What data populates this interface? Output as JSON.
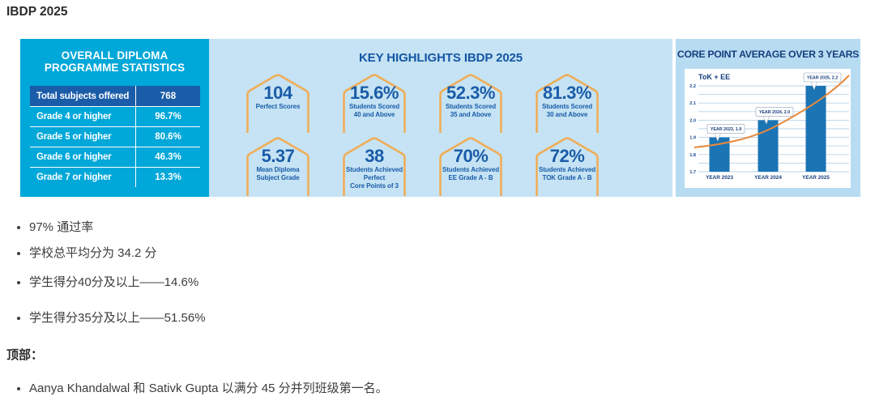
{
  "page": {
    "title": "IBDP 2025"
  },
  "stats_panel": {
    "title": "OVERALL DIPLOMA PROGRAMME STATISTICS",
    "rows": [
      {
        "label": "Total subjects offered",
        "value": "768"
      },
      {
        "label": "Grade 4 or higher",
        "value": "96.7%"
      },
      {
        "label": "Grade 5 or higher",
        "value": "80.6%"
      },
      {
        "label": "Grade 6 or higher",
        "value": "46.3%"
      },
      {
        "label": "Grade 7 or higher",
        "value": "13.3%"
      }
    ]
  },
  "highlights": {
    "title": "KEY HIGHLIGHTS IBDP 2025",
    "badges": [
      {
        "value": "104",
        "label": "Perfect Scores"
      },
      {
        "value": "15.6%",
        "label": "Students Scored\n40 and Above"
      },
      {
        "value": "52.3%",
        "label": "Students Scored\n35 and Above"
      },
      {
        "value": "81.3%",
        "label": "Students Scored\n30 and Above"
      },
      {
        "value": "5.37",
        "label": "Mean Diploma\nSubject Grade"
      },
      {
        "value": "38",
        "label": "Students Achieved Perfect\nCore Points of 3"
      },
      {
        "value": "70%",
        "label": "Students Achieved\nEE Grade A - B"
      },
      {
        "value": "72%",
        "label": "Students Achieved\nTOK Grade A - B"
      }
    ]
  },
  "chart_data": {
    "type": "bar",
    "title": "CORE POINT AVERAGE OVER 3 YEARS",
    "series_label": "ToK + EE",
    "categories": [
      "YEAR 2023",
      "YEAR 2024",
      "YEAR 2025"
    ],
    "values": [
      1.9,
      2.0,
      2.2
    ],
    "data_labels": [
      "YEAR 2023, 1.9",
      "YEAR 2024, 2.0",
      "YEAR 2025, 2.2"
    ],
    "ylim": [
      1.7,
      2.2
    ],
    "yticks": [
      1.7,
      1.8,
      1.9,
      2.0,
      2.1,
      2.2
    ],
    "grid_step": 0.05,
    "trend_line": true,
    "legend_position": "top-left",
    "colors": {
      "bar": "#1b74b4",
      "trend": "#e98a3c",
      "grid": "#b9d3e8"
    }
  },
  "notes": {
    "bullets_1": [
      "97% 通过率",
      "学校总平均分为 34.2 分",
      "学生得分40分及以上——14.6%",
      "学生得分35分及以上——51.56%"
    ],
    "section_heading": "顶部：",
    "bullets_2": [
      "Aanya Khandalwal 和 Sativk Gupta 以满分 45 分并列班级第一名。"
    ]
  }
}
